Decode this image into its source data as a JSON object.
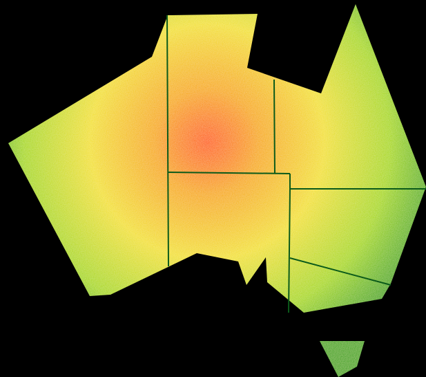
{
  "map": {
    "background_color": "#000000",
    "border_color": "#0b5a1a",
    "heat_colors": {
      "hot": "#ff5a10",
      "warm": "#f7a800",
      "mild": "#f2e030",
      "cool": "#a8d80c",
      "coolest": "#3ea51a"
    },
    "regions": [
      {
        "id": "western-australia"
      },
      {
        "id": "northern-territory"
      },
      {
        "id": "south-australia"
      },
      {
        "id": "queensland"
      },
      {
        "id": "new-south-wales"
      },
      {
        "id": "victoria"
      },
      {
        "id": "tasmania"
      }
    ]
  }
}
